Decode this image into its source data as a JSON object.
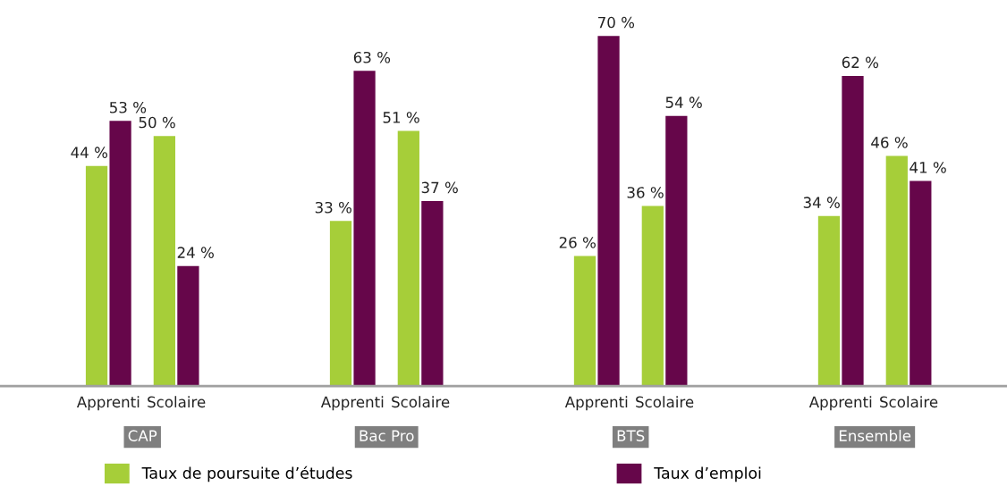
{
  "chart_data": {
    "type": "bar",
    "categories": [
      "Apprenti",
      "Scolaire",
      "Apprenti",
      "Scolaire",
      "Apprenti",
      "Scolaire",
      "Apprenti",
      "Scolaire"
    ],
    "series": [
      {
        "name": "Taux de poursuite d’études",
        "color": "#a6ce39",
        "values": [
          44,
          50,
          33,
          51,
          26,
          36,
          34,
          46
        ],
        "value_labels": [
          "44 %",
          "50 %",
          "33 %",
          "51 %",
          "26 %",
          "36 %",
          "34 %",
          "46 %"
        ]
      },
      {
        "name": "Taux d’emploi",
        "color": "#66064a",
        "values": [
          53,
          24,
          63,
          37,
          70,
          54,
          62,
          41
        ],
        "value_labels": [
          "53 %",
          "24 %",
          "63 %",
          "37 %",
          "70 %",
          "54 %",
          "62 %",
          "41 %"
        ]
      }
    ],
    "annotations": [
      "CAP",
      "Bac Pro",
      "BTS",
      "Ensemble"
    ],
    "legend": "bottom",
    "grid": false
  }
}
